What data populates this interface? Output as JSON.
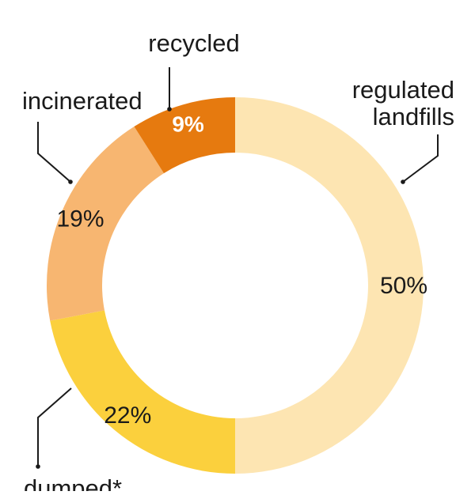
{
  "chart_data": {
    "type": "pie",
    "title": "",
    "categories": [
      "regulated landfills",
      "dumped*",
      "incinerated",
      "recycled"
    ],
    "values": [
      50,
      22,
      19,
      9
    ],
    "value_labels": [
      "50%",
      "22%",
      "19%",
      "9%"
    ],
    "colors": [
      "#FDE5B2",
      "#FBD03D",
      "#F7B671",
      "#E67A0F"
    ],
    "label_colors": [
      "#1a1a1a",
      "#1a1a1a",
      "#1a1a1a",
      "#ffffff"
    ],
    "legend": "callout labels",
    "style": "donut"
  }
}
